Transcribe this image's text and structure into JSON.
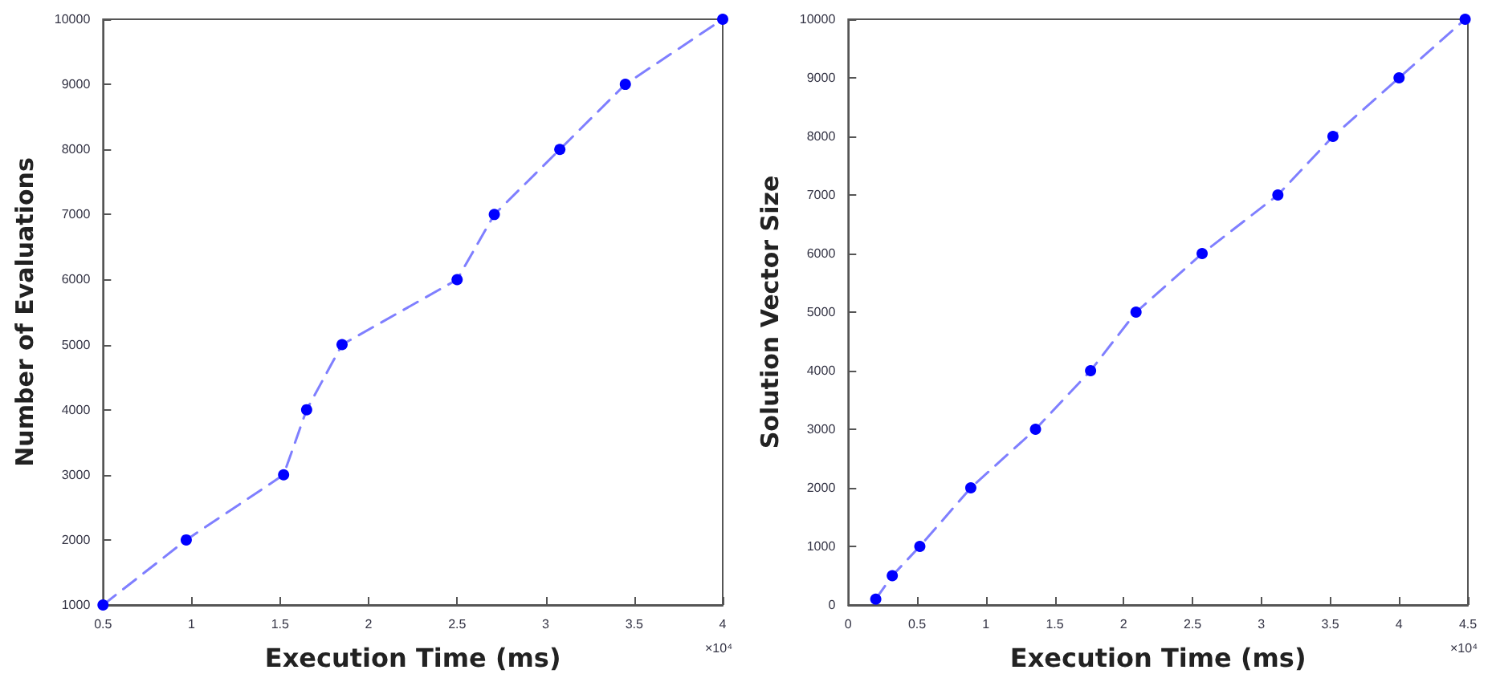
{
  "chart_data": [
    {
      "type": "line",
      "xlabel": "Execution Time (ms)",
      "ylabel": "Number of Evaluations",
      "annotations": [
        "×10⁴"
      ],
      "series": [
        {
          "color": "#0000ff",
          "x": [
            0.5,
            0.97,
            1.52,
            1.65,
            1.85,
            2.5,
            2.71,
            3.08,
            3.45,
            4
          ],
          "values": [
            1000,
            2000,
            3000,
            4000,
            5000,
            6000,
            7000,
            8000,
            9000,
            10000
          ]
        }
      ],
      "xlim": [
        0.5,
        4
      ],
      "xticks": [
        0.5,
        1,
        1.5,
        2,
        2.5,
        3,
        3.5,
        4
      ],
      "ylim": [
        1000,
        10000
      ],
      "yticks": [
        1000,
        2000,
        3000,
        4000,
        5000,
        6000,
        7000,
        8000,
        9000,
        10000
      ],
      "marker": "circle",
      "line_style": "dashed"
    },
    {
      "type": "line",
      "xlabel": "Execution Time (ms)",
      "ylabel": "Solution Vector Size",
      "annotations": [
        "×10⁴"
      ],
      "series": [
        {
          "color": "#0000ff",
          "x": [
            0.2,
            0.32,
            0.52,
            0.89,
            1.36,
            1.76,
            2.09,
            2.57,
            3.12,
            3.52,
            4.0,
            4.48
          ],
          "values": [
            100,
            500,
            1000,
            2000,
            3000,
            4000,
            5000,
            6000,
            7000,
            8000,
            9000,
            10000
          ]
        }
      ],
      "xlim": [
        0,
        4.5
      ],
      "xticks": [
        0,
        0.5,
        1,
        1.5,
        2,
        2.5,
        3,
        3.5,
        4,
        4.5
      ],
      "ylim": [
        0,
        10000
      ],
      "yticks": [
        0,
        1000,
        2000,
        3000,
        4000,
        5000,
        6000,
        7000,
        8000,
        9000,
        10000
      ],
      "marker": "circle",
      "line_style": "dashed"
    }
  ]
}
